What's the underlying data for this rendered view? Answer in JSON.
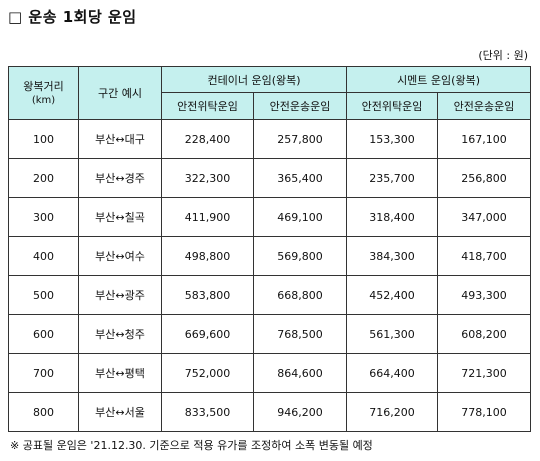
{
  "title": "□ 운송 1회당 운임",
  "unit_note": "(단위 : 원)",
  "table": {
    "headers": {
      "distance": "왕복거리",
      "distance_unit": "(km)",
      "route": "구간 예시",
      "group_container": "컨테이너 운임(왕복)",
      "group_cement": "시멘트 운임(왕복)",
      "sub_consign": "안전위탁운임",
      "sub_transport": "안전운송운임"
    },
    "rows": [
      {
        "distance": "100",
        "route": "부산↔대구",
        "c_consign": "228,400",
        "c_transport": "257,800",
        "s_consign": "153,300",
        "s_transport": "167,100"
      },
      {
        "distance": "200",
        "route": "부산↔경주",
        "c_consign": "322,300",
        "c_transport": "365,400",
        "s_consign": "235,700",
        "s_transport": "256,800"
      },
      {
        "distance": "300",
        "route": "부산↔칠곡",
        "c_consign": "411,900",
        "c_transport": "469,100",
        "s_consign": "318,400",
        "s_transport": "347,000"
      },
      {
        "distance": "400",
        "route": "부산↔여수",
        "c_consign": "498,800",
        "c_transport": "569,800",
        "s_consign": "384,300",
        "s_transport": "418,700"
      },
      {
        "distance": "500",
        "route": "부산↔광주",
        "c_consign": "583,800",
        "c_transport": "668,800",
        "s_consign": "452,400",
        "s_transport": "493,300"
      },
      {
        "distance": "600",
        "route": "부산↔청주",
        "c_consign": "669,600",
        "c_transport": "768,500",
        "s_consign": "561,300",
        "s_transport": "608,200"
      },
      {
        "distance": "700",
        "route": "부산↔평택",
        "c_consign": "752,000",
        "c_transport": "864,600",
        "s_consign": "664,400",
        "s_transport": "721,300"
      },
      {
        "distance": "800",
        "route": "부산↔서울",
        "c_consign": "833,500",
        "c_transport": "946,200",
        "s_consign": "716,200",
        "s_transport": "778,100"
      }
    ]
  },
  "footnote": "※ 공표될 운임은 '21.12.30. 기준으로 적용 유가를 조정하여 소폭 변동될 예정"
}
